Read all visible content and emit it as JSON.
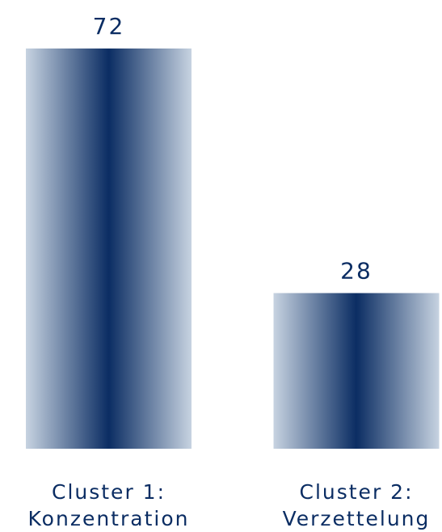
{
  "chart_data": {
    "type": "bar",
    "categories": [
      [
        "Cluster 1:",
        "Konzentration"
      ],
      [
        "Cluster 2:",
        "Verzettelung"
      ]
    ],
    "values": [
      72,
      28
    ],
    "value_labels": [
      "72",
      "28"
    ],
    "ylim": [
      0,
      72
    ],
    "grid": false,
    "legend": "none",
    "colors": {
      "bar_center": "#0b2d63",
      "bar_edge": "#c7d3e1",
      "text": "#0b2d63"
    }
  }
}
